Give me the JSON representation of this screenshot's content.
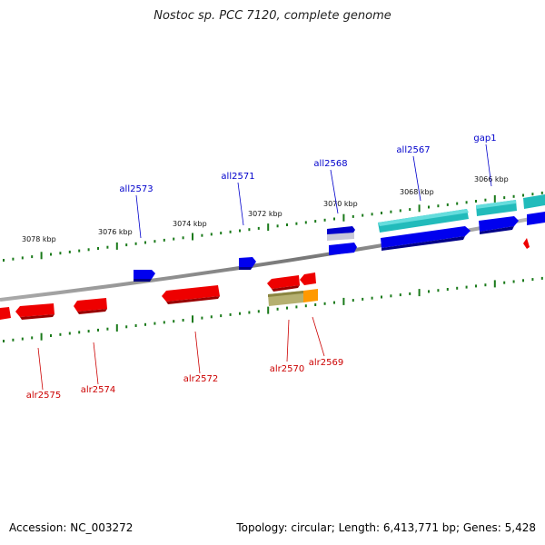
{
  "title": "Nostoc sp. PCC 7120, complete genome",
  "footer": {
    "accession": "Accession: NC_003272",
    "summary": "Topology: circular; Length: 6,413,771 bp; Genes: 5,428"
  },
  "kbp_labels": [
    "3078 kbp",
    "3076 kbp",
    "3074 kbp",
    "3072 kbp",
    "3070 kbp",
    "3068 kbp",
    "3066 kbp"
  ],
  "upper_genes": [
    "all2573",
    "all2571",
    "all2568",
    "all2567",
    "gap1"
  ],
  "lower_genes": [
    "alr2575",
    "alr2574",
    "alr2572",
    "alr2570",
    "alr2569"
  ],
  "colors": {
    "upper_label": "#0000cc",
    "lower_label": "#cc0000",
    "backbone": "#888888",
    "tick": "#1a7a1a",
    "gene_blue": "#0000ee",
    "gene_cyan": "#22bbbb",
    "gene_red": "#ee0000",
    "gene_olive": "#b5b070",
    "gene_orange": "#ff9900"
  }
}
